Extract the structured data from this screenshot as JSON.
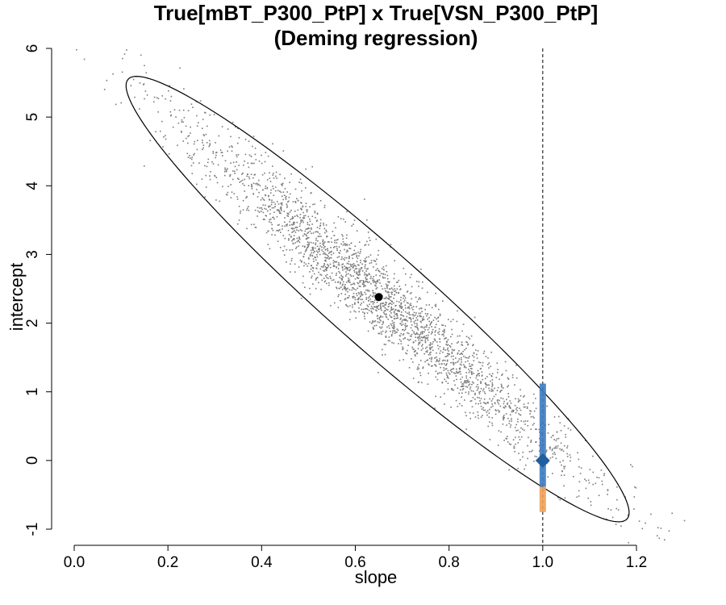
{
  "chart_data": {
    "type": "scatter",
    "title": "True[mBT_P300_PtP] x True[VSN_P300_PtP]",
    "subtitle": "(Deming regression)",
    "xlabel": "slope",
    "ylabel": "intercept",
    "xlim": [
      0.0,
      1.2
    ],
    "ylim": [
      -1.0,
      6.0
    ],
    "x_ticks": [
      "0.0",
      "0.2",
      "0.4",
      "0.6",
      "0.8",
      "1.0",
      "1.2"
    ],
    "y_ticks": [
      "-1",
      "0",
      "1",
      "2",
      "3",
      "4",
      "5",
      "6"
    ],
    "grid": false,
    "legend": "none",
    "point_estimate": {
      "x": 0.65,
      "y": 2.38
    },
    "identity_reference": {
      "x": 1.0,
      "y": 0.0
    },
    "reference_line_x": 1.0,
    "confidence_ellipse": {
      "center": [
        0.65,
        2.38
      ],
      "endpoint_a": [
        0.115,
        5.55
      ],
      "endpoint_b": [
        1.18,
        -0.85
      ],
      "semi_minor_slope_units": 0.068
    },
    "intercept_interval_at_slope_1": {
      "blue": [
        -0.38,
        1.12
      ],
      "orange": [
        -0.75,
        -0.38
      ]
    },
    "bootstrap_cloud": {
      "count": 2600,
      "main_axis_sd": 0.4,
      "minor_axis_sd": 0.33
    },
    "colors": {
      "points": "#7a7a7a",
      "estimate": "#000000",
      "identity_marker": "#1f5fa0",
      "interval_blue": "#3d7cc0",
      "interval_orange": "#f0a055",
      "ellipse": "#000000"
    }
  }
}
